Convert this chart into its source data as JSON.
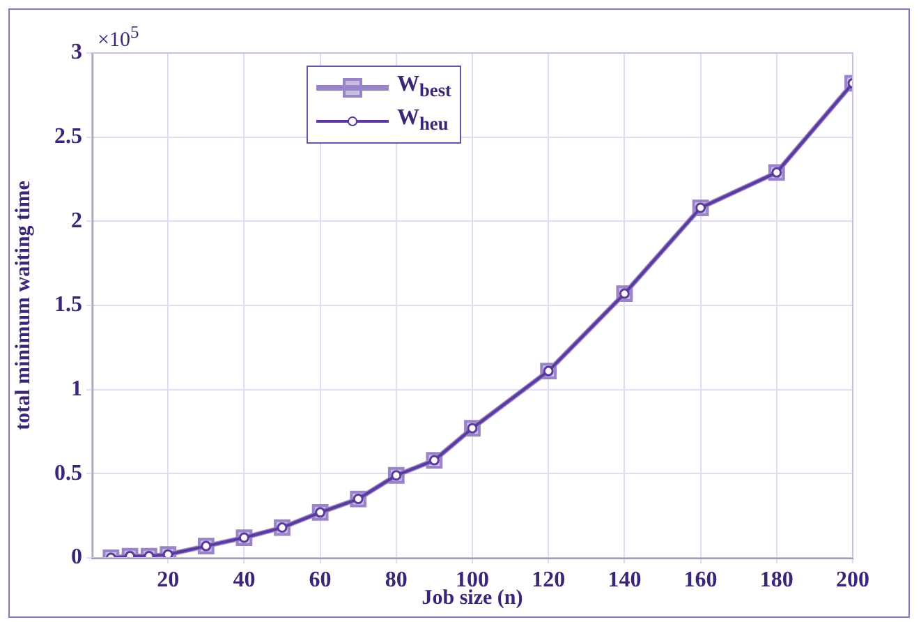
{
  "chart_data": {
    "type": "line",
    "xlabel": "Job size (n)",
    "ylabel": "total minimum waiting time",
    "annotations": [
      "×10$^{5}$"
    ],
    "x": [
      5,
      10,
      15,
      20,
      30,
      40,
      50,
      60,
      70,
      80,
      90,
      100,
      120,
      140,
      160,
      180,
      200
    ],
    "series": [
      {
        "name": "W$_{best}$",
        "color": "#9a84c8",
        "marker": "square",
        "values": [
          0,
          0.01,
          0.01,
          0.02,
          0.07,
          0.12,
          0.18,
          0.27,
          0.35,
          0.49,
          0.58,
          0.77,
          1.11,
          1.57,
          2.08,
          2.29,
          2.82
        ]
      },
      {
        "name": "W$_{heu}$",
        "color": "#5a3a9c",
        "marker": "circle",
        "values": [
          0,
          0.01,
          0.01,
          0.02,
          0.07,
          0.12,
          0.18,
          0.27,
          0.35,
          0.49,
          0.58,
          0.77,
          1.11,
          1.57,
          2.08,
          2.29,
          2.82
        ]
      }
    ],
    "xlim": [
      0,
      200
    ],
    "xticks": [
      20,
      40,
      60,
      80,
      100,
      120,
      140,
      160,
      180,
      200
    ],
    "ylim": [
      0,
      3
    ],
    "yticks": [
      0,
      0.5,
      1,
      1.5,
      2,
      2.5,
      3
    ],
    "grid": true,
    "legend": "top",
    "line_style": "solid"
  }
}
